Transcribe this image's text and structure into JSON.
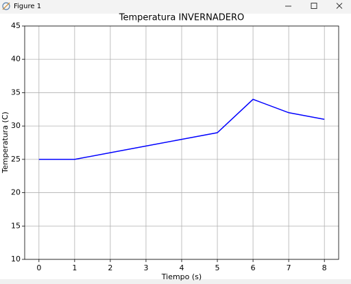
{
  "window": {
    "title": "Figure 1"
  },
  "chart_data": {
    "type": "line",
    "title": "Temperatura INVERNADERO",
    "x_label": "Tiempo (s)",
    "y_label": "Temperatura (C)",
    "x": [
      0,
      1,
      2,
      3,
      4,
      5,
      6,
      7,
      8
    ],
    "values": [
      25,
      25,
      26,
      27,
      28,
      29,
      34,
      32,
      31
    ],
    "color": "#0000ff",
    "xlim": [
      -0.4,
      8.4
    ],
    "xticks": [
      0,
      1,
      2,
      3,
      4,
      5,
      6,
      7,
      8
    ],
    "ylim": [
      10,
      45
    ],
    "yticks": [
      10,
      15,
      20,
      25,
      30,
      35,
      40,
      45
    ],
    "grid": true
  }
}
